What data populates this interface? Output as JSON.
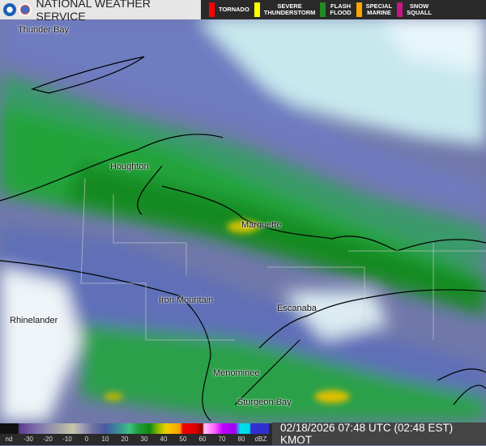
{
  "header": {
    "title": "NATIONAL WEATHER SERVICE",
    "logos": [
      "noaa-logo",
      "nws-logo"
    ]
  },
  "warnings": [
    {
      "label": "TORNADO",
      "color": "#ff0000"
    },
    {
      "label": "SEVERE\nTHUNDERSTORM",
      "color": "#ffff00"
    },
    {
      "label": "FLASH\nFLOOD",
      "color": "#228b22"
    },
    {
      "label": "SPECIAL\nMARINE",
      "color": "#ffa500"
    },
    {
      "label": "SNOW\nSQUALL",
      "color": "#c71585"
    }
  ],
  "cities": [
    "Thunder Bay",
    "Houghton",
    "Marquette",
    "Iron Mountain",
    "Escanaba",
    "Rhinelander",
    "Menominee",
    "Sturgeon Bay"
  ],
  "colorbar": {
    "labels": [
      "nd",
      "-30",
      "-20",
      "-10",
      "0",
      "10",
      "20",
      "30",
      "40",
      "50",
      "60",
      "70",
      "80",
      "dBZ"
    ]
  },
  "timestamp": "02/18/2026 07:48 UTC (02:48 EST) KMOT"
}
